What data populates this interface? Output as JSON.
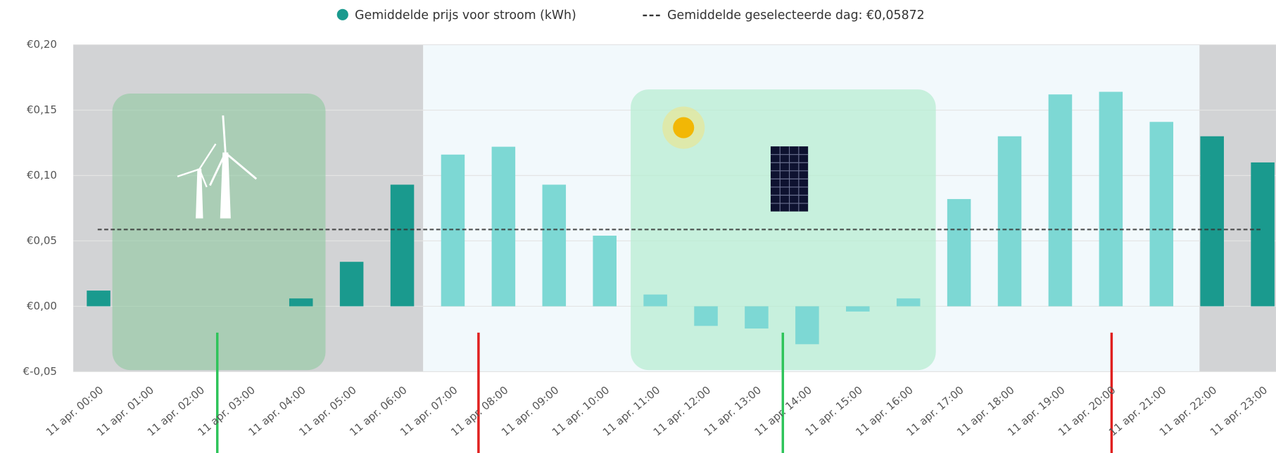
{
  "chart_data": {
    "type": "bar",
    "categories": [
      "11 apr. 00:00",
      "11 apr. 01:00",
      "11 apr. 02:00",
      "11 apr. 03:00",
      "11 apr. 04:00",
      "11 apr. 05:00",
      "11 apr. 06:00",
      "11 apr. 07:00",
      "11 apr. 08:00",
      "11 apr. 09:00",
      "11 apr. 10:00",
      "11 apr. 11:00",
      "11 apr. 12:00",
      "11 apr. 13:00",
      "11 apr. 14:00",
      "11 apr. 15:00",
      "11 apr. 16:00",
      "11 apr. 17:00",
      "11 apr. 18:00",
      "11 apr. 19:00",
      "11 apr. 20:00",
      "11 apr. 21:00",
      "11 apr. 22:00",
      "11 apr. 23:00"
    ],
    "series": [
      {
        "name": "Gemiddelde prijs voor stroom (kWh)",
        "color": "#1a9a8e",
        "values": [
          0.012,
          0.0,
          0.0,
          0.0,
          0.006,
          0.034,
          0.093,
          0.116,
          0.122,
          0.093,
          0.054,
          0.009,
          -0.015,
          -0.017,
          -0.029,
          -0.004,
          0.006,
          0.082,
          0.13,
          0.162,
          0.164,
          0.141,
          0.13,
          0.11
        ],
        "colors": [
          "#1a9a8e",
          "#1a9a8e",
          "#1a9a8e",
          "#1a9a8e",
          "#1a9a8e",
          "#1a9a8e",
          "#1a9a8e",
          "#7dd8d4",
          "#7dd8d4",
          "#7dd8d4",
          "#7dd8d4",
          "#7dd8d4",
          "#7dd8d4",
          "#7dd8d4",
          "#7dd8d4",
          "#7dd8d4",
          "#7dd8d4",
          "#7dd8d4",
          "#7dd8d4",
          "#7dd8d4",
          "#7dd8d4",
          "#7dd8d4",
          "#1a9a8e",
          "#1a9a8e"
        ]
      }
    ],
    "average": {
      "value": 0.05872,
      "label": "Gemiddelde geselecteerde dag: €0,05872",
      "color": "#333333"
    },
    "ylim": [
      -0.05,
      0.2
    ],
    "yticks": [
      {
        "value": -0.05,
        "label": "€-0,05"
      },
      {
        "value": 0,
        "label": "€0,00"
      },
      {
        "value": 0.05,
        "label": "€0,05"
      },
      {
        "value": 0.1,
        "label": "€0,10"
      },
      {
        "value": 0.15,
        "label": "€0,15"
      },
      {
        "value": 0.2,
        "label": "€0,20"
      }
    ],
    "grid": true
  }
}
